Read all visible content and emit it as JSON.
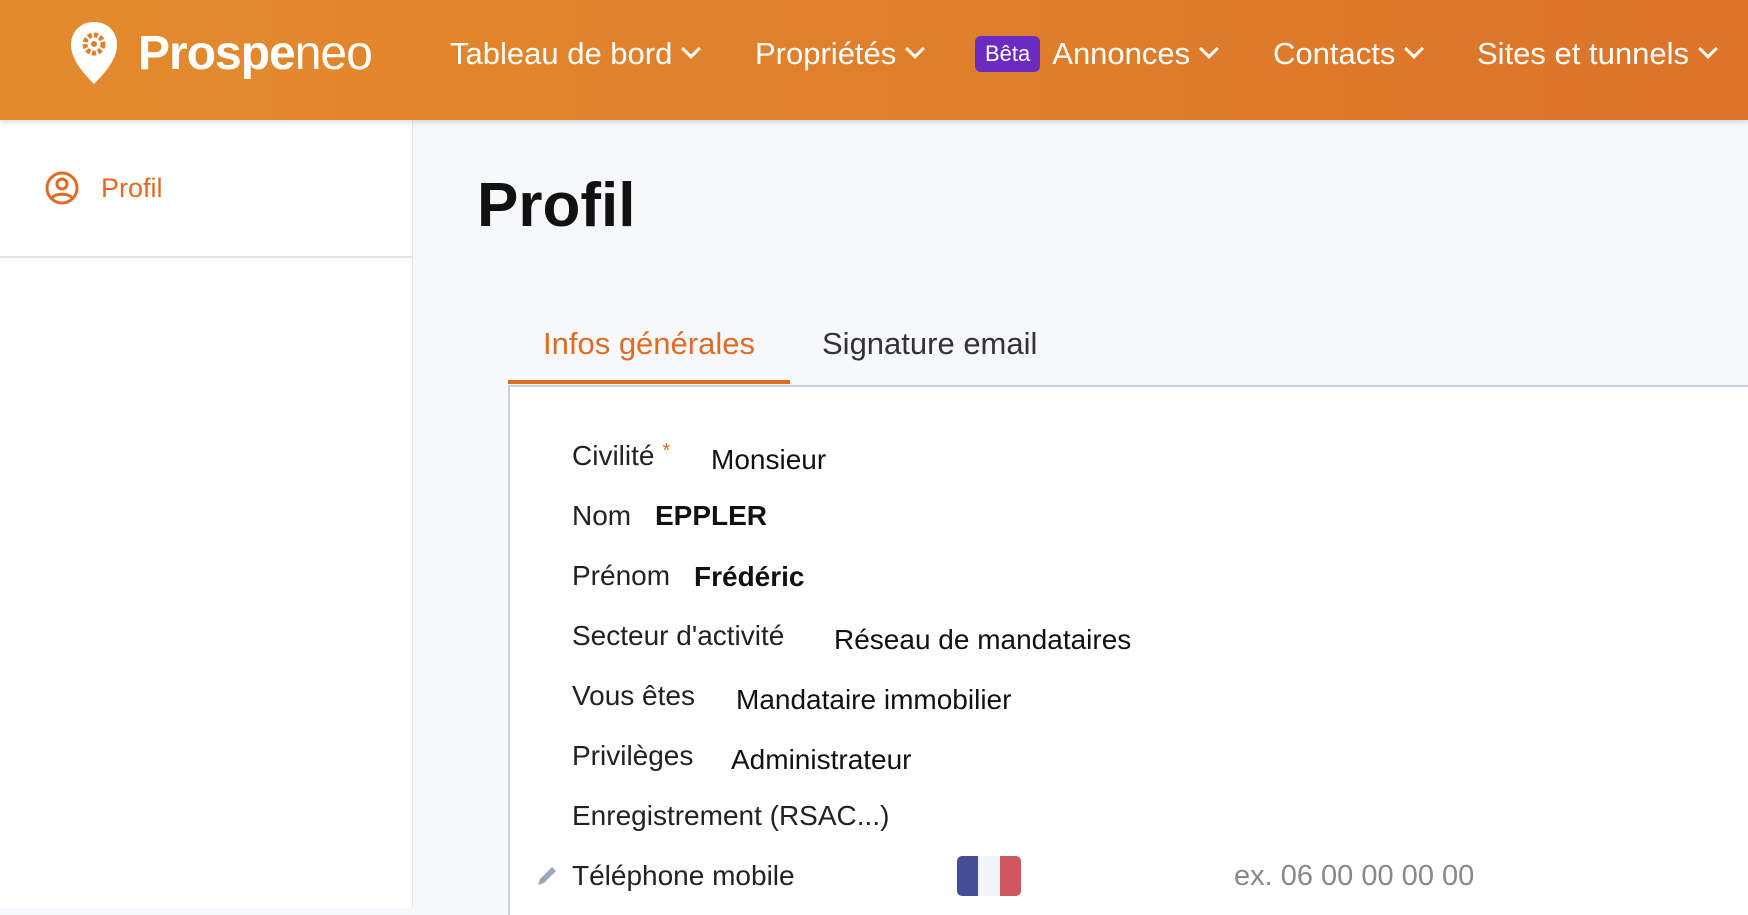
{
  "header": {
    "brand": "Prospe",
    "brand_light": "neo",
    "nav": [
      {
        "label": "Tableau de bord"
      },
      {
        "label": "Propriétés"
      },
      {
        "label": "Annonces",
        "badge": "Bêta"
      },
      {
        "label": "Contacts"
      },
      {
        "label": "Sites et tunnels"
      }
    ],
    "colors": {
      "bg": "#e0802c",
      "badge": "#6b2ac2"
    }
  },
  "sidebar": {
    "items": [
      {
        "label": "Profil",
        "icon": "user-circle-icon",
        "active": true
      }
    ]
  },
  "page": {
    "title": "Profil"
  },
  "tabs": [
    {
      "label": "Infos générales",
      "active": true
    },
    {
      "label": "Signature email"
    }
  ],
  "form": {
    "civilite": {
      "label": "Civilité",
      "required": "*",
      "value": "Monsieur"
    },
    "nom": {
      "label": "Nom",
      "value": "EPPLER"
    },
    "prenom": {
      "label": "Prénom",
      "value": "Frédéric"
    },
    "secteur": {
      "label": "Secteur d'activité",
      "value": "Réseau de mandataires"
    },
    "vous": {
      "label": "Vous êtes",
      "value": "Mandataire immobilier"
    },
    "privileges": {
      "label": "Privilèges",
      "value": "Administrateur"
    },
    "enregistrement": {
      "label": "Enregistrement (RSAC...)"
    },
    "telephone": {
      "label": "Téléphone mobile",
      "country": "FR",
      "placeholder": "ex. 06 00 00 00 00"
    }
  }
}
